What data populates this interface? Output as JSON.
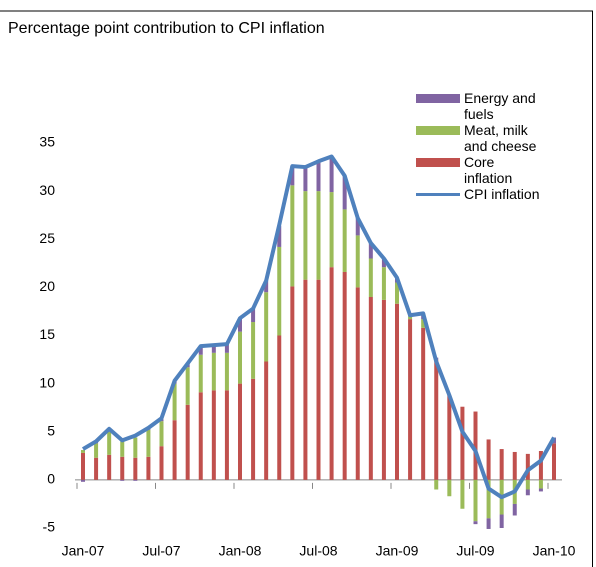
{
  "chart_data": {
    "type": "stacked_bar_line",
    "title": "Percentage point contribution to CPI inflation",
    "categories": [
      "Jan-07",
      null,
      null,
      null,
      null,
      null,
      "Jul-07",
      null,
      null,
      null,
      null,
      null,
      "Jan-08",
      null,
      null,
      null,
      null,
      null,
      "Jul-08",
      null,
      null,
      null,
      null,
      null,
      "Jan-09",
      null,
      null,
      null,
      null,
      null,
      "Jul-09",
      null,
      null,
      null,
      null,
      null,
      "Jan-10"
    ],
    "series": [
      {
        "name": "Energy and fuels",
        "color": "#8064a2",
        "kind": "bar",
        "values": [
          -0.2,
          0.1,
          0.2,
          -0.1,
          -0.1,
          0.1,
          0.2,
          0.3,
          0.4,
          0.9,
          0.8,
          0.9,
          1.4,
          1.4,
          1.2,
          2.2,
          2.0,
          2.5,
          3.1,
          3.7,
          3.5,
          1.8,
          1.6,
          0.9,
          0.5,
          0.1,
          0.6,
          0.2,
          0,
          0,
          -0.3,
          -1.1,
          -1.4,
          -1.2,
          -0.6,
          -0.3,
          0.6
        ]
      },
      {
        "name": "Meat, milk and cheese",
        "color": "#9bbb59",
        "kind": "bar",
        "values": [
          0.3,
          1.5,
          2.4,
          1.6,
          2.1,
          2.8,
          2.6,
          3.8,
          3.9,
          3.9,
          3.9,
          3.9,
          5.4,
          5.9,
          7.2,
          9.2,
          10.5,
          9.2,
          9.2,
          7.8,
          6.5,
          5.4,
          4.0,
          3.4,
          2.2,
          0.3,
          0.9,
          -1.0,
          -1.7,
          -3.0,
          -4.3,
          -4.0,
          -3.6,
          -2.5,
          -1.0,
          -0.9,
          0
        ]
      },
      {
        "name": "Core inflation",
        "color": "#c0504d",
        "kind": "bar",
        "values": [
          2.8,
          2.3,
          2.6,
          2.4,
          2.3,
          2.4,
          3.5,
          6.2,
          7.8,
          9.1,
          9.3,
          9.3,
          10.0,
          10.5,
          12.3,
          15.0,
          20.1,
          20.8,
          20.8,
          22.1,
          21.6,
          20.0,
          19.0,
          18.7,
          18.3,
          16.7,
          15.8,
          12.5,
          8.8,
          7.6,
          7.1,
          4.2,
          3.2,
          2.9,
          2.7,
          3.0,
          3.8
        ]
      },
      {
        "name": "CPI inflation",
        "color": "#4f81bd",
        "kind": "line",
        "values": [
          3.2,
          4.0,
          5.3,
          4.1,
          4.6,
          5.4,
          6.4,
          10.3,
          12.1,
          13.9,
          14.0,
          14.1,
          16.8,
          17.8,
          20.7,
          26.5,
          32.6,
          32.5,
          33.1,
          33.6,
          31.6,
          27.2,
          24.6,
          23.0,
          21.0,
          17.1,
          17.3,
          12.3,
          8.8,
          5.0,
          3.0,
          -0.9,
          -1.8,
          -1.2,
          1.0,
          2.0,
          4.4
        ]
      }
    ],
    "ylim": [
      -5,
      35
    ],
    "yticks": [
      -5,
      0,
      5,
      10,
      15,
      20,
      25,
      30,
      35
    ],
    "grid": false,
    "legend": "upper right"
  }
}
